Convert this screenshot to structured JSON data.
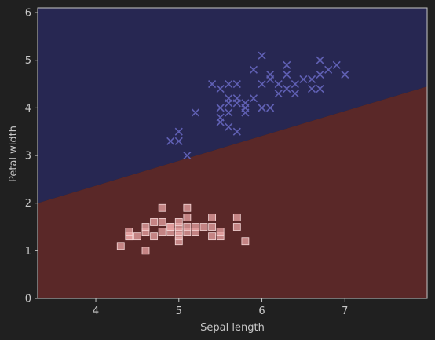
{
  "chart_data": {
    "type": "scatter",
    "title": "",
    "xlabel": "Sepal length",
    "ylabel": "Petal width",
    "xlim": [
      3.3,
      7.99
    ],
    "ylim": [
      0,
      6.1
    ],
    "xticks": [
      "4",
      "5",
      "6",
      "7"
    ],
    "yticks": [
      "0",
      "1",
      "2",
      "3",
      "4",
      "5",
      "6"
    ],
    "grid": false,
    "legend": "none",
    "decision_boundary": {
      "x": [
        3.3,
        7.99
      ],
      "y": [
        2.0,
        4.45
      ],
      "region_above_color": "#272752",
      "region_below_color": "#5a2828"
    },
    "series": [
      {
        "marker": "square",
        "color": "#e8a3a3",
        "points": [
          [
            4.3,
            1.1
          ],
          [
            4.4,
            1.3
          ],
          [
            4.4,
            1.3
          ],
          [
            4.4,
            1.4
          ],
          [
            4.5,
            1.3
          ],
          [
            4.6,
            1.0
          ],
          [
            4.6,
            1.4
          ],
          [
            4.6,
            1.5
          ],
          [
            4.7,
            1.3
          ],
          [
            4.7,
            1.6
          ],
          [
            4.8,
            1.4
          ],
          [
            4.8,
            1.6
          ],
          [
            4.8,
            1.9
          ],
          [
            4.9,
            1.4
          ],
          [
            4.9,
            1.5
          ],
          [
            4.9,
            1.5
          ],
          [
            5.0,
            1.2
          ],
          [
            5.0,
            1.3
          ],
          [
            5.0,
            1.4
          ],
          [
            5.0,
            1.5
          ],
          [
            5.0,
            1.6
          ],
          [
            5.1,
            1.4
          ],
          [
            5.1,
            1.5
          ],
          [
            5.1,
            1.7
          ],
          [
            5.1,
            1.9
          ],
          [
            5.2,
            1.4
          ],
          [
            5.2,
            1.5
          ],
          [
            5.3,
            1.5
          ],
          [
            5.4,
            1.3
          ],
          [
            5.4,
            1.5
          ],
          [
            5.4,
            1.7
          ],
          [
            5.5,
            1.3
          ],
          [
            5.5,
            1.4
          ],
          [
            5.7,
            1.5
          ],
          [
            5.7,
            1.7
          ],
          [
            5.8,
            1.2
          ]
        ]
      },
      {
        "marker": "x",
        "color": "#6060b4",
        "points": [
          [
            4.9,
            3.3
          ],
          [
            5.0,
            3.3
          ],
          [
            5.0,
            3.5
          ],
          [
            5.1,
            3.0
          ],
          [
            5.2,
            3.9
          ],
          [
            5.4,
            4.5
          ],
          [
            5.5,
            3.7
          ],
          [
            5.5,
            3.8
          ],
          [
            5.5,
            4.0
          ],
          [
            5.5,
            4.4
          ],
          [
            5.6,
            3.6
          ],
          [
            5.6,
            3.9
          ],
          [
            5.6,
            4.1
          ],
          [
            5.6,
            4.2
          ],
          [
            5.6,
            4.5
          ],
          [
            5.7,
            3.5
          ],
          [
            5.7,
            4.1
          ],
          [
            5.7,
            4.2
          ],
          [
            5.7,
            4.5
          ],
          [
            5.8,
            3.9
          ],
          [
            5.8,
            4.0
          ],
          [
            5.8,
            4.1
          ],
          [
            5.9,
            4.2
          ],
          [
            5.9,
            4.8
          ],
          [
            6.0,
            4.0
          ],
          [
            6.0,
            4.5
          ],
          [
            6.0,
            5.1
          ],
          [
            6.1,
            4.0
          ],
          [
            6.1,
            4.6
          ],
          [
            6.1,
            4.7
          ],
          [
            6.2,
            4.3
          ],
          [
            6.2,
            4.5
          ],
          [
            6.3,
            4.4
          ],
          [
            6.3,
            4.7
          ],
          [
            6.3,
            4.9
          ],
          [
            6.4,
            4.3
          ],
          [
            6.4,
            4.5
          ],
          [
            6.5,
            4.6
          ],
          [
            6.6,
            4.4
          ],
          [
            6.6,
            4.6
          ],
          [
            6.7,
            4.4
          ],
          [
            6.7,
            4.7
          ],
          [
            6.7,
            5.0
          ],
          [
            6.8,
            4.8
          ],
          [
            6.9,
            4.9
          ],
          [
            7.0,
            4.7
          ]
        ]
      }
    ]
  }
}
